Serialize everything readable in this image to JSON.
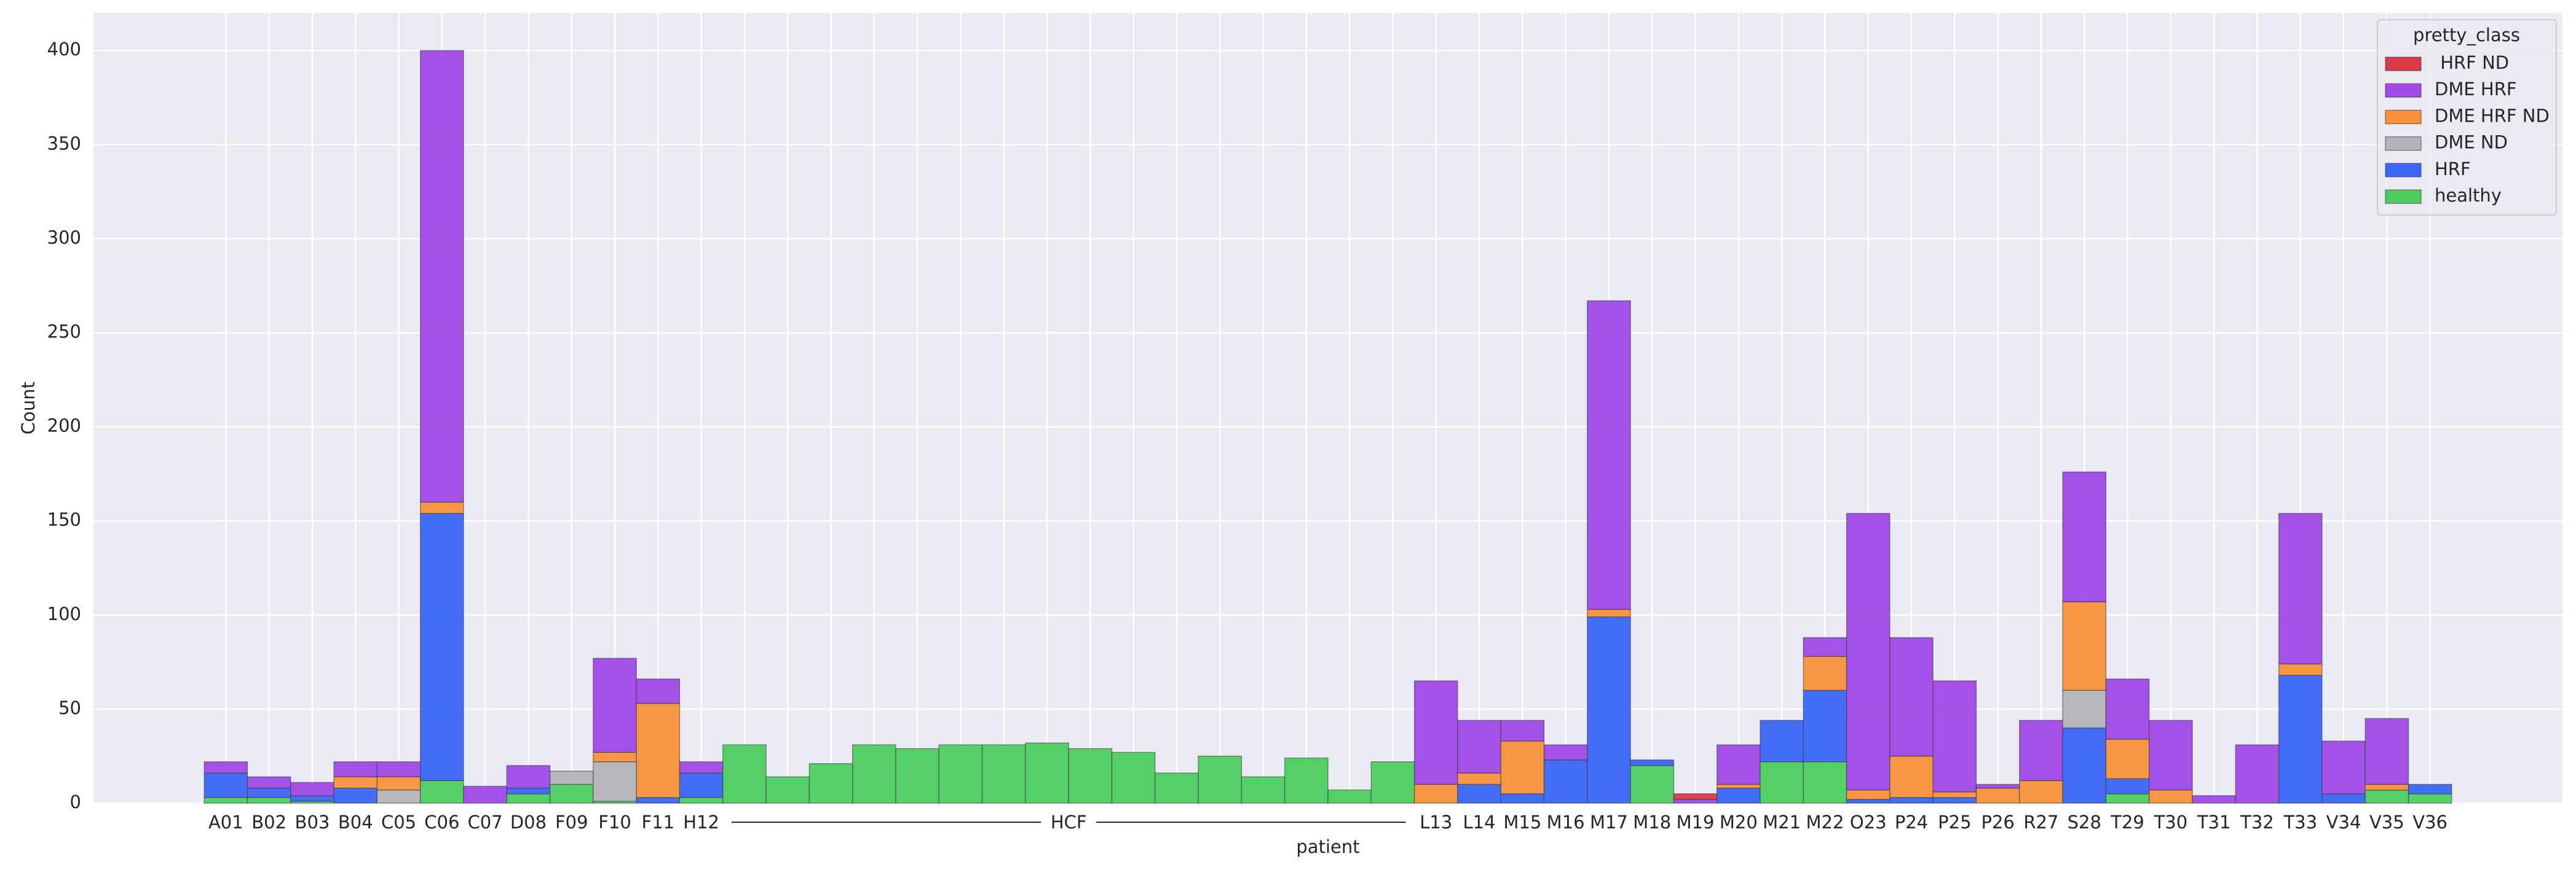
{
  "chart_data": {
    "type": "stacked_bar",
    "xlabel": "patient",
    "ylabel": "Count",
    "legend_title": "pretty_class",
    "legend_position": "upper right",
    "group_annotation": "HCF",
    "categories": [
      "A01",
      "B02",
      "B03",
      "B04",
      "C05",
      "C06",
      "C07",
      "D08",
      "F09",
      "F10",
      "F11",
      "H12",
      null,
      null,
      null,
      null,
      null,
      null,
      null,
      null,
      null,
      null,
      null,
      null,
      null,
      null,
      null,
      null,
      "L13",
      "L14",
      "M15",
      "M16",
      "M17",
      "M18",
      "M19",
      "M20",
      "M21",
      "M22",
      "O23",
      "P24",
      "P25",
      "P26",
      "R27",
      "S28",
      "T29",
      "T30",
      "T31",
      "T32",
      "T33",
      "V34",
      "V35",
      "V36"
    ],
    "series": [
      {
        "name": " HRF ND",
        "color": "#de3a45",
        "values": [
          0,
          0,
          0,
          0,
          0,
          0,
          0,
          0,
          0,
          0,
          0,
          0,
          0,
          0,
          0,
          0,
          0,
          0,
          0,
          0,
          0,
          0,
          0,
          0,
          0,
          0,
          0,
          0,
          0,
          0,
          0,
          0,
          0,
          0,
          3,
          0,
          0,
          0,
          0,
          0,
          0,
          0,
          0,
          0,
          0,
          0,
          0,
          0,
          0,
          0,
          0,
          0
        ]
      },
      {
        "name": "DME HRF",
        "color": "#a049e6",
        "values": [
          6,
          6,
          7,
          8,
          8,
          240,
          9,
          12,
          0,
          50,
          13,
          6,
          0,
          0,
          0,
          0,
          0,
          0,
          0,
          0,
          0,
          0,
          0,
          0,
          0,
          0,
          0,
          0,
          55,
          28,
          11,
          8,
          164,
          0,
          2,
          21,
          0,
          10,
          147,
          63,
          59,
          2,
          32,
          69,
          32,
          37,
          4,
          31,
          80,
          28,
          35,
          0
        ]
      },
      {
        "name": "DME HRF ND",
        "color": "#f8913a",
        "values": [
          0,
          0,
          0,
          6,
          7,
          6,
          0,
          0,
          0,
          5,
          50,
          0,
          0,
          0,
          0,
          0,
          0,
          0,
          0,
          0,
          0,
          0,
          0,
          0,
          0,
          0,
          0,
          0,
          10,
          6,
          28,
          0,
          4,
          0,
          0,
          2,
          0,
          18,
          5,
          22,
          3,
          8,
          12,
          47,
          21,
          7,
          0,
          0,
          6,
          0,
          3,
          0
        ]
      },
      {
        "name": "DME ND",
        "color": "#b4b4b8",
        "values": [
          0,
          0,
          0,
          0,
          7,
          0,
          0,
          0,
          7,
          21,
          0,
          0,
          0,
          0,
          0,
          0,
          0,
          0,
          0,
          0,
          0,
          0,
          0,
          0,
          0,
          0,
          0,
          0,
          0,
          0,
          0,
          0,
          0,
          0,
          0,
          0,
          0,
          0,
          0,
          0,
          0,
          0,
          0,
          20,
          0,
          0,
          0,
          0,
          0,
          0,
          0,
          0
        ]
      },
      {
        "name": "HRF",
        "color": "#3a66f5",
        "values": [
          13,
          5,
          3,
          8,
          0,
          142,
          0,
          3,
          0,
          0,
          3,
          13,
          0,
          0,
          0,
          0,
          0,
          0,
          0,
          0,
          0,
          0,
          0,
          0,
          0,
          0,
          0,
          0,
          0,
          10,
          5,
          23,
          99,
          3,
          0,
          8,
          22,
          38,
          2,
          3,
          3,
          0,
          0,
          40,
          8,
          0,
          0,
          0,
          68,
          5,
          0,
          5
        ]
      },
      {
        "name": "healthy",
        "color": "#4dcd5f",
        "values": [
          3,
          3,
          1,
          0,
          0,
          12,
          0,
          5,
          10,
          1,
          0,
          3,
          31,
          14,
          21,
          31,
          29,
          31,
          31,
          32,
          29,
          27,
          16,
          25,
          14,
          24,
          7,
          22,
          0,
          0,
          0,
          0,
          0,
          20,
          0,
          0,
          22,
          22,
          0,
          0,
          0,
          0,
          0,
          0,
          5,
          0,
          0,
          0,
          0,
          0,
          7,
          5
        ]
      }
    ],
    "ylim": [
      0,
      420
    ],
    "yticks": [
      0,
      50,
      100,
      150,
      200,
      250,
      300,
      350,
      400
    ],
    "grid": true
  }
}
